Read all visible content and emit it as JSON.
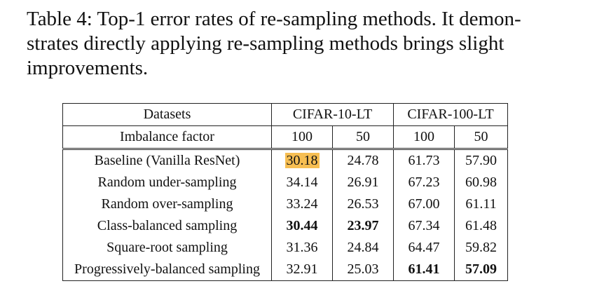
{
  "caption": {
    "lines": [
      "Table 4: Top-1 error rates of re-sampling methods. It demon-",
      "strates directly applying re-sampling methods brings slight",
      "improvements."
    ]
  },
  "table": {
    "header": {
      "datasets_label": "Datasets",
      "dataset_a": "CIFAR-10-LT",
      "dataset_b": "CIFAR-100-LT",
      "imbalance_label": "Imbalance factor",
      "factors": [
        "100",
        "50",
        "100",
        "50"
      ]
    },
    "rows": [
      {
        "method": "Baseline (Vanilla ResNet)",
        "values": [
          "30.18",
          "24.78",
          "61.73",
          "57.90"
        ],
        "bold": [
          false,
          false,
          false,
          false
        ],
        "highlight": [
          true,
          false,
          false,
          false
        ]
      },
      {
        "method": "Random under-sampling",
        "values": [
          "34.14",
          "26.91",
          "67.23",
          "60.98"
        ],
        "bold": [
          false,
          false,
          false,
          false
        ],
        "highlight": [
          false,
          false,
          false,
          false
        ]
      },
      {
        "method": "Random over-sampling",
        "values": [
          "33.24",
          "26.53",
          "67.00",
          "61.11"
        ],
        "bold": [
          false,
          false,
          false,
          false
        ],
        "highlight": [
          false,
          false,
          false,
          false
        ]
      },
      {
        "method": "Class-balanced sampling",
        "values": [
          "30.44",
          "23.97",
          "67.34",
          "61.48"
        ],
        "bold": [
          true,
          true,
          false,
          false
        ],
        "highlight": [
          false,
          false,
          false,
          false
        ]
      },
      {
        "method": "Square-root sampling",
        "values": [
          "31.36",
          "24.84",
          "64.47",
          "59.82"
        ],
        "bold": [
          false,
          false,
          false,
          false
        ],
        "highlight": [
          false,
          false,
          false,
          false
        ]
      },
      {
        "method": "Progressively-balanced sampling",
        "values": [
          "32.91",
          "25.03",
          "61.41",
          "57.09"
        ],
        "bold": [
          false,
          false,
          true,
          true
        ],
        "highlight": [
          false,
          false,
          false,
          false
        ]
      }
    ],
    "highlight_color": "#f6be52"
  }
}
